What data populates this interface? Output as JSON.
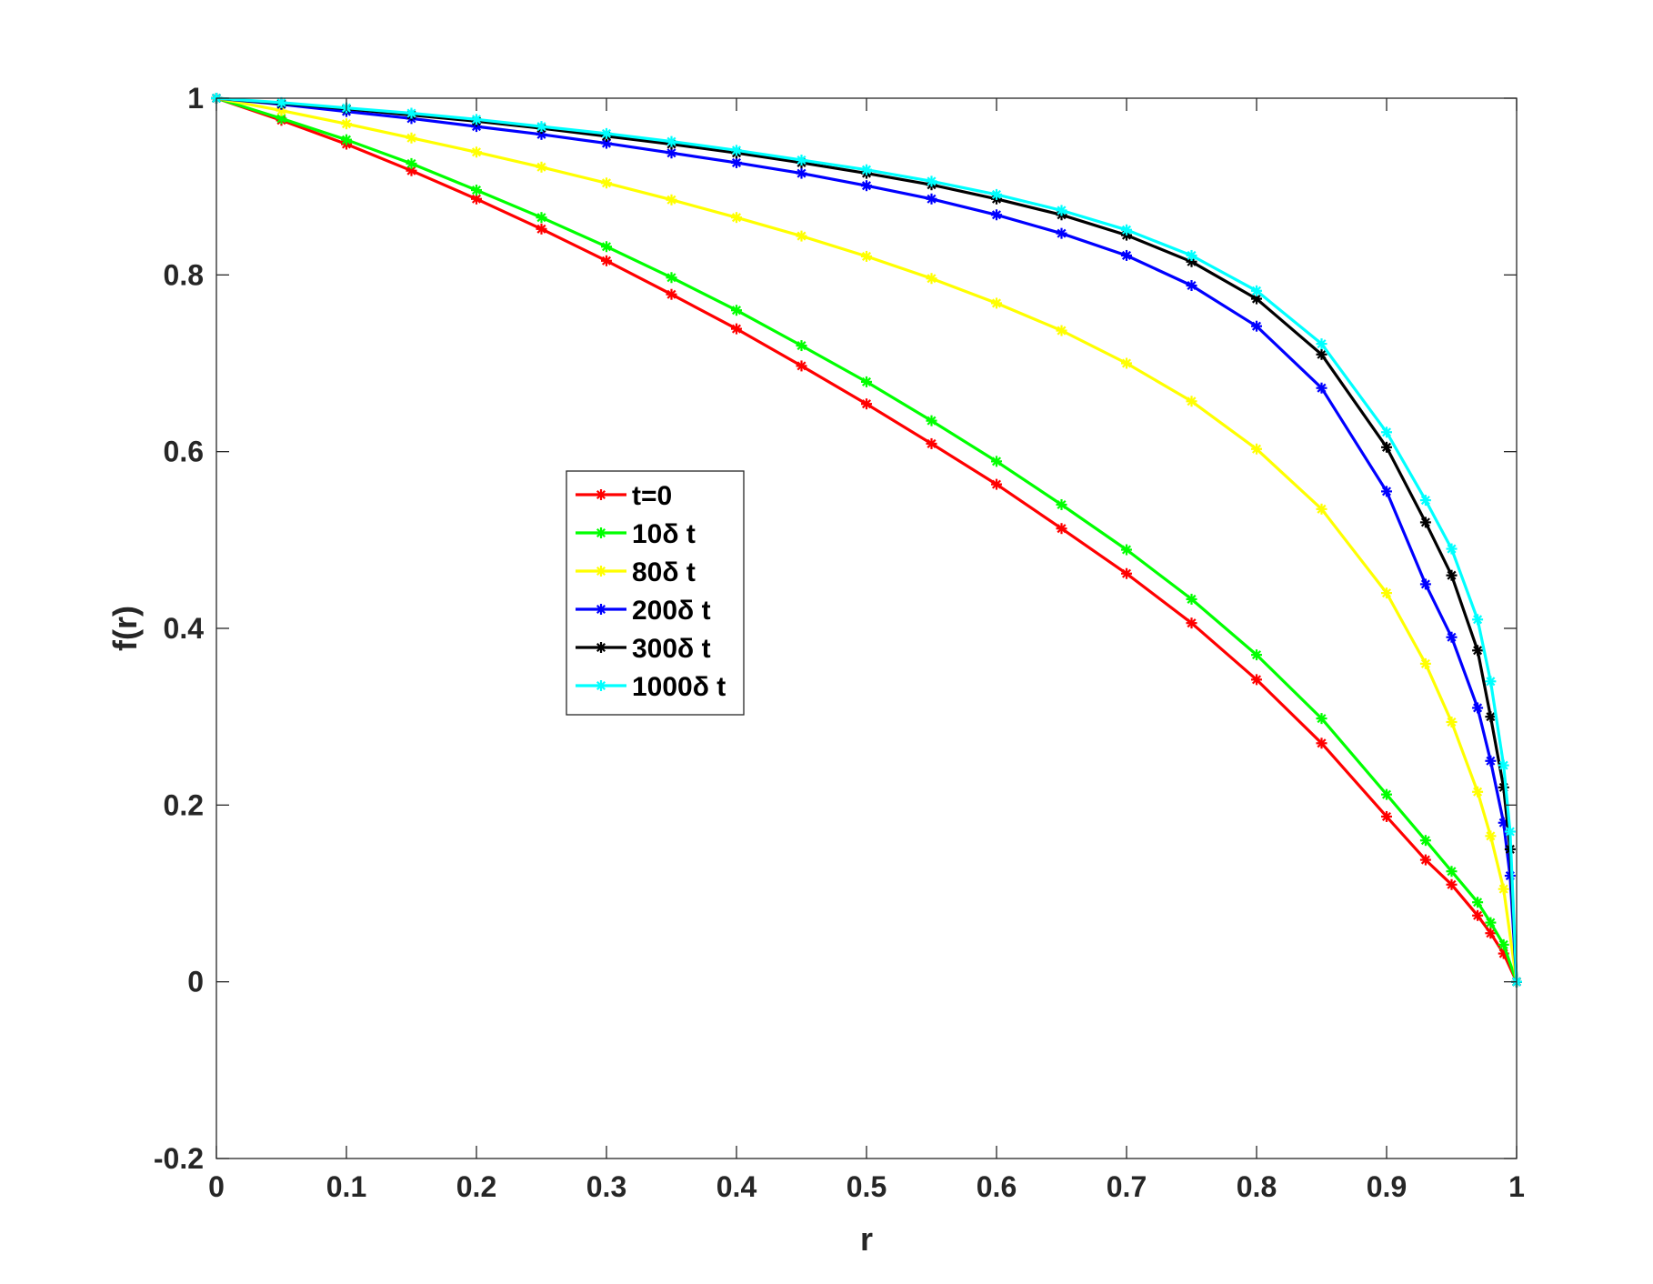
{
  "chart_data": {
    "type": "line",
    "xlabel": "r",
    "ylabel": "f(r)",
    "xlim": [
      0,
      1
    ],
    "ylim": [
      -0.2,
      1
    ],
    "xticks": [
      "0",
      "0.1",
      "0.2",
      "0.3",
      "0.4",
      "0.5",
      "0.6",
      "0.7",
      "0.8",
      "0.9",
      "1"
    ],
    "yticks": [
      "-0.2",
      "0",
      "0.2",
      "0.4",
      "0.6",
      "0.8",
      "1"
    ],
    "grid": false,
    "box": true,
    "legend_placement": "center-left",
    "marker": "asterisk",
    "series": [
      {
        "name": "t=0",
        "color": "#ff0000",
        "x": [
          0,
          0.05,
          0.1,
          0.15,
          0.2,
          0.25,
          0.3,
          0.35,
          0.4,
          0.45,
          0.5,
          0.55,
          0.6,
          0.65,
          0.7,
          0.75,
          0.8,
          0.85,
          0.9,
          0.93,
          0.95,
          0.97,
          0.98,
          0.99,
          1.0
        ],
        "y": [
          1.0,
          0.975,
          0.948,
          0.918,
          0.886,
          0.852,
          0.816,
          0.778,
          0.739,
          0.697,
          0.654,
          0.609,
          0.563,
          0.513,
          0.462,
          0.406,
          0.342,
          0.27,
          0.187,
          0.138,
          0.11,
          0.075,
          0.055,
          0.032,
          0.0
        ]
      },
      {
        "name": "10δ t",
        "color": "#00ff00",
        "x": [
          0,
          0.05,
          0.1,
          0.15,
          0.2,
          0.25,
          0.3,
          0.35,
          0.4,
          0.45,
          0.5,
          0.55,
          0.6,
          0.65,
          0.7,
          0.75,
          0.8,
          0.85,
          0.9,
          0.93,
          0.95,
          0.97,
          0.98,
          0.99,
          1.0
        ],
        "y": [
          1.0,
          0.977,
          0.953,
          0.926,
          0.896,
          0.865,
          0.832,
          0.797,
          0.76,
          0.72,
          0.679,
          0.635,
          0.589,
          0.54,
          0.489,
          0.433,
          0.37,
          0.298,
          0.212,
          0.16,
          0.125,
          0.09,
          0.067,
          0.042,
          0.0
        ]
      },
      {
        "name": "80δ t",
        "color": "#ffff00",
        "x": [
          0,
          0.05,
          0.1,
          0.15,
          0.2,
          0.25,
          0.3,
          0.35,
          0.4,
          0.45,
          0.5,
          0.55,
          0.6,
          0.65,
          0.7,
          0.75,
          0.8,
          0.85,
          0.9,
          0.93,
          0.95,
          0.97,
          0.98,
          0.99,
          1.0
        ],
        "y": [
          1.0,
          0.986,
          0.971,
          0.955,
          0.939,
          0.922,
          0.904,
          0.885,
          0.865,
          0.844,
          0.821,
          0.796,
          0.768,
          0.737,
          0.7,
          0.657,
          0.603,
          0.535,
          0.44,
          0.36,
          0.294,
          0.215,
          0.165,
          0.105,
          0.0
        ]
      },
      {
        "name": "200δ t",
        "color": "#0000ff",
        "x": [
          0,
          0.05,
          0.1,
          0.15,
          0.2,
          0.25,
          0.3,
          0.35,
          0.4,
          0.45,
          0.5,
          0.55,
          0.6,
          0.65,
          0.7,
          0.75,
          0.8,
          0.85,
          0.9,
          0.93,
          0.95,
          0.97,
          0.98,
          0.99,
          0.995,
          1.0
        ],
        "y": [
          1.0,
          0.993,
          0.985,
          0.977,
          0.968,
          0.959,
          0.949,
          0.938,
          0.927,
          0.915,
          0.901,
          0.886,
          0.868,
          0.847,
          0.822,
          0.788,
          0.742,
          0.672,
          0.555,
          0.45,
          0.39,
          0.31,
          0.25,
          0.18,
          0.12,
          0.0
        ]
      },
      {
        "name": "300δ t",
        "color": "#000000",
        "x": [
          0,
          0.05,
          0.1,
          0.15,
          0.2,
          0.25,
          0.3,
          0.35,
          0.4,
          0.45,
          0.5,
          0.55,
          0.6,
          0.65,
          0.7,
          0.75,
          0.8,
          0.85,
          0.9,
          0.93,
          0.95,
          0.97,
          0.98,
          0.99,
          0.995,
          1.0
        ],
        "y": [
          1.0,
          0.994,
          0.988,
          0.981,
          0.974,
          0.966,
          0.957,
          0.948,
          0.938,
          0.927,
          0.915,
          0.902,
          0.886,
          0.868,
          0.845,
          0.815,
          0.773,
          0.71,
          0.605,
          0.52,
          0.46,
          0.375,
          0.3,
          0.22,
          0.15,
          0.0
        ]
      },
      {
        "name": "1000δ t",
        "color": "#00ffff",
        "x": [
          0,
          0.05,
          0.1,
          0.15,
          0.2,
          0.25,
          0.3,
          0.35,
          0.4,
          0.45,
          0.5,
          0.55,
          0.6,
          0.65,
          0.7,
          0.75,
          0.8,
          0.85,
          0.9,
          0.93,
          0.95,
          0.97,
          0.98,
          0.99,
          0.995,
          1.0
        ],
        "y": [
          1.0,
          0.995,
          0.989,
          0.983,
          0.976,
          0.968,
          0.96,
          0.951,
          0.941,
          0.93,
          0.919,
          0.906,
          0.891,
          0.873,
          0.851,
          0.822,
          0.782,
          0.722,
          0.622,
          0.545,
          0.49,
          0.41,
          0.34,
          0.245,
          0.17,
          0.0
        ]
      }
    ]
  }
}
